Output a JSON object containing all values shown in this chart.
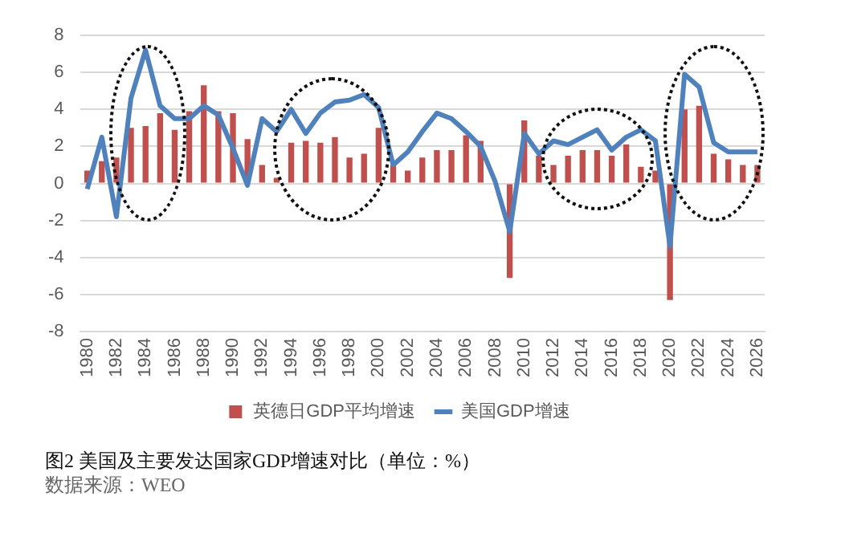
{
  "chart_data": {
    "type": "bar",
    "title": "图2 美国及主要发达国家GDP增速对比（单位：%）",
    "annotations": [
      "数据来源：WEO"
    ],
    "categories": [
      "1980",
      null,
      "1982",
      null,
      "1984",
      null,
      "1986",
      null,
      "1988",
      null,
      "1990",
      null,
      "1992",
      null,
      "1994",
      null,
      "1996",
      null,
      "1998",
      null,
      "2000",
      null,
      "2002",
      null,
      "2004",
      null,
      "2006",
      null,
      "2008",
      null,
      "2010",
      null,
      "2012",
      null,
      "2014",
      null,
      "2016",
      null,
      "2018",
      null,
      "2020",
      null,
      "2022",
      null,
      "2024",
      null,
      "2026"
    ],
    "series": [
      {
        "name": "英德日GDP平均增速",
        "color": "#c0504d",
        "values": [
          0.7,
          1.2,
          1.4,
          3.0,
          3.1,
          3.8,
          2.9,
          3.9,
          5.3,
          3.9,
          3.8,
          2.4,
          1.0,
          0.3,
          2.2,
          2.3,
          2.2,
          2.5,
          1.4,
          1.6,
          3.0,
          1.0,
          0.7,
          1.4,
          1.8,
          1.8,
          2.6,
          2.3,
          0.0,
          -5.1,
          3.4,
          1.5,
          1.0,
          1.5,
          1.8,
          1.8,
          1.5,
          2.1,
          0.9,
          0.7,
          -6.3,
          4.0,
          4.2,
          1.6,
          1.3,
          1.0,
          1.0
        ]
      },
      {
        "name": "美国GDP增速",
        "type": "line",
        "color": "#4f81bd",
        "values": [
          -0.3,
          2.5,
          -1.8,
          4.6,
          7.2,
          4.2,
          3.5,
          3.5,
          4.2,
          3.7,
          1.9,
          -0.1,
          3.5,
          2.8,
          4.0,
          2.7,
          3.8,
          4.4,
          4.5,
          4.8,
          4.1,
          1.0,
          1.7,
          2.8,
          3.8,
          3.5,
          2.8,
          2.0,
          0.1,
          -2.6,
          2.7,
          1.6,
          2.3,
          2.1,
          2.5,
          2.9,
          1.8,
          2.5,
          2.9,
          2.3,
          -3.4,
          5.9,
          5.2,
          2.2,
          1.7,
          1.7,
          1.7
        ]
      }
    ],
    "ylim": [
      -8,
      8
    ],
    "yticks": [
      -8,
      -6,
      -4,
      -2,
      0,
      2,
      4,
      6,
      8
    ],
    "grid": "y",
    "legend": "bottom",
    "marker": "none"
  }
}
